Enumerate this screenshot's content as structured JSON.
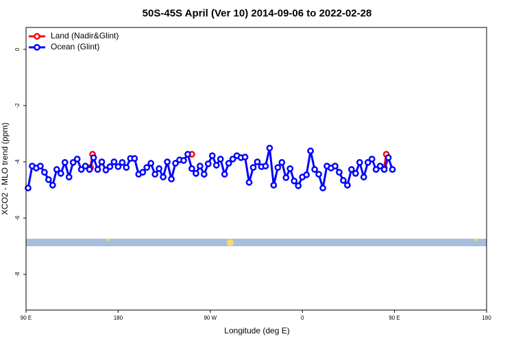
{
  "chart_data": {
    "type": "line",
    "title": "50S-45S April (Ver 10)   2014-09-06 to 2022-02-28",
    "x_label": "Longitude (deg E)",
    "y_label": "XCO2 - MLO trend (ppm)",
    "xlim": [
      90,
      540
    ],
    "xticks": [
      {
        "value": 90,
        "label": "90 E"
      },
      180,
      {
        "value": 270,
        "label": "90 W"
      },
      {
        "value": 360,
        "label": "0"
      },
      {
        "value": 450,
        "label": "90 E"
      },
      {
        "value": 540,
        "label": "180"
      }
    ],
    "ylim": [
      -9.27,
      0.78
    ],
    "yticks": [
      -8,
      -6,
      -4,
      -2,
      0
    ],
    "legend": "top-left",
    "series": [
      {
        "name": "Land (Nadir&Glint)",
        "color": "#ff0000",
        "x": [
          153,
          155,
          null,
          252,
          null,
          440,
          442
        ],
        "values": [
          -4.2,
          -3.73,
          null,
          -3.73,
          null,
          -4.2,
          -3.73
        ]
      },
      {
        "name": "Ocean (Glint)",
        "color": "#0000ff",
        "x": [
          92,
          96,
          100,
          104,
          108,
          112,
          116,
          120,
          124,
          128,
          132,
          136,
          140,
          144,
          148,
          152,
          156,
          160,
          164,
          168,
          172,
          176,
          180,
          184,
          188,
          192,
          196,
          200,
          204,
          208,
          212,
          216,
          220,
          224,
          228,
          232,
          236,
          240,
          244,
          248,
          252,
          256,
          260,
          264,
          268,
          272,
          276,
          280,
          284,
          288,
          292,
          296,
          300,
          304,
          308,
          312,
          316,
          320,
          324,
          328,
          332,
          336,
          340,
          344,
          348,
          352,
          356,
          360,
          364,
          368,
          372,
          376,
          380,
          384,
          388,
          392,
          396,
          400,
          404,
          408,
          412,
          416,
          420,
          424,
          428,
          432,
          436,
          440,
          444,
          448
        ],
        "values": [
          -4.93,
          -4.15,
          -4.22,
          -4.15,
          -4.37,
          -4.63,
          -4.83,
          -4.27,
          -4.41,
          -4.02,
          -4.54,
          -4.02,
          -3.9,
          -4.27,
          -4.15,
          -4.27,
          -3.85,
          -4.27,
          -4.0,
          -4.29,
          -4.17,
          -4.0,
          -4.17,
          -4.02,
          -4.2,
          -3.88,
          -3.88,
          -4.44,
          -4.37,
          -4.2,
          -4.05,
          -4.44,
          -4.24,
          -4.54,
          -4.0,
          -4.61,
          -4.05,
          -3.93,
          -3.95,
          -3.73,
          -4.24,
          -4.41,
          -4.15,
          -4.44,
          -4.07,
          -3.78,
          -4.12,
          -3.9,
          -4.44,
          -4.05,
          -3.9,
          -3.78,
          -3.85,
          -3.83,
          -4.73,
          -4.2,
          -4.0,
          -4.17,
          -4.15,
          -3.51,
          -4.83,
          -4.2,
          -4.02,
          -4.56,
          -4.24,
          -4.68,
          -4.85,
          -4.54,
          -4.46,
          -3.61,
          -4.27,
          -4.44,
          -4.93,
          -4.15,
          -4.22,
          -4.15,
          -4.37,
          -4.66,
          -4.83,
          -4.27,
          -4.41,
          -4.02,
          -4.54,
          -4.02,
          -3.9,
          -4.27,
          -4.15,
          -4.27,
          -3.85,
          -4.27
        ]
      }
    ]
  }
}
